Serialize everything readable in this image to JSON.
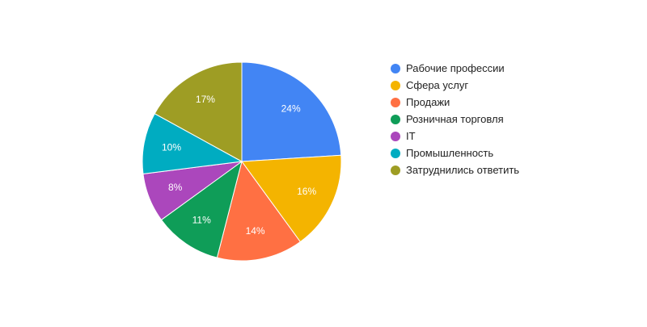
{
  "chart_data": {
    "type": "pie",
    "categories": [
      "Рабочие профессии",
      "Сфера услуг",
      "Продажи",
      "Розничная торговля",
      "IT",
      "Промышленность",
      "Затруднились ответить"
    ],
    "values": [
      24,
      16,
      14,
      11,
      8,
      10,
      17
    ],
    "value_labels": [
      "24%",
      "16%",
      "14%",
      "11%",
      "8%",
      "10%",
      "17%"
    ],
    "colors": [
      "#4285F4",
      "#F4B400",
      "#FF7043",
      "#0F9D58",
      "#AB47BC",
      "#00ACC1",
      "#9E9D24"
    ],
    "legend_placement": "right",
    "title": ""
  }
}
